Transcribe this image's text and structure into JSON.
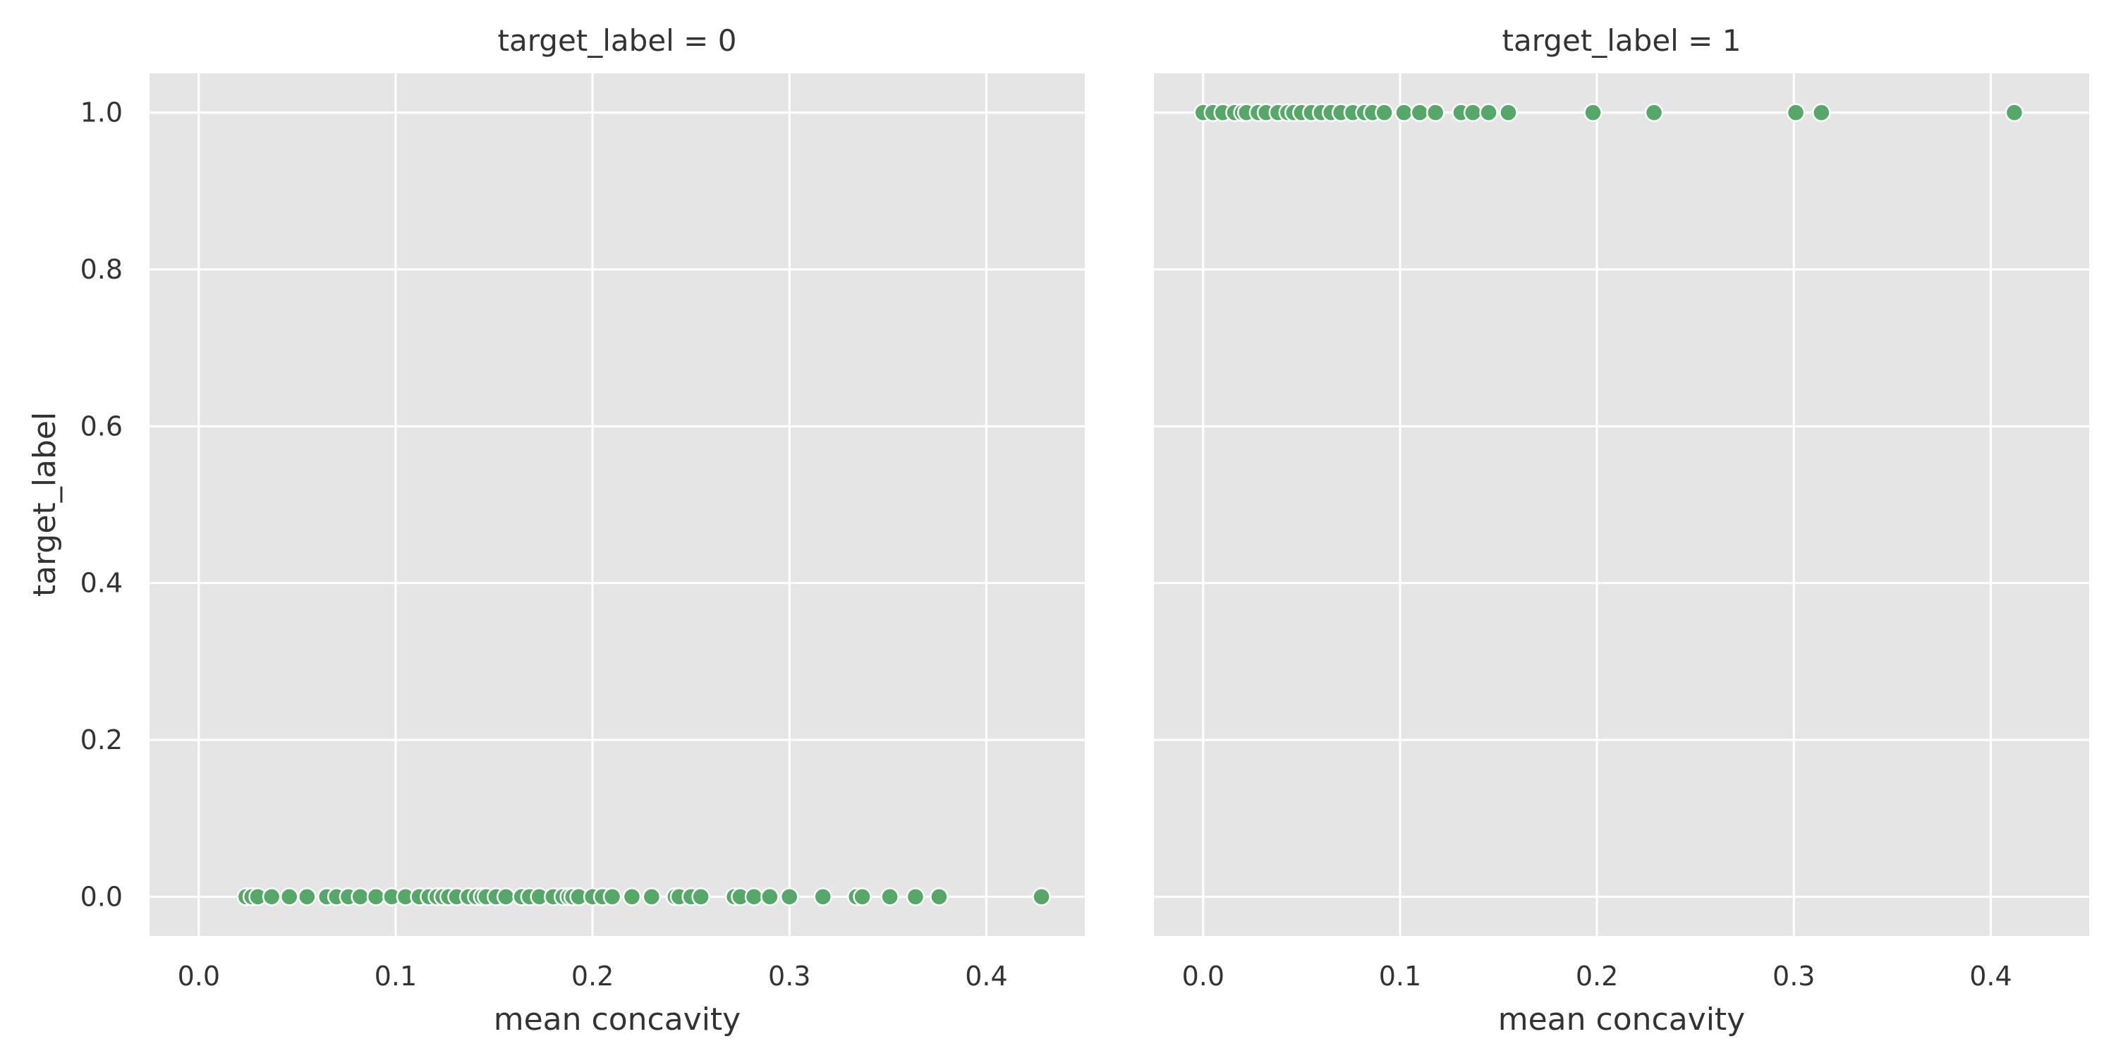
{
  "chart_data": [
    {
      "type": "scatter",
      "title": "target_label = 0",
      "xlabel": "mean concavity",
      "ylabel": "target_label",
      "xlim": [
        -0.025,
        0.45
      ],
      "ylim": [
        -0.05,
        1.05
      ],
      "xticks": [
        0.0,
        0.1,
        0.2,
        0.3,
        0.4
      ],
      "xtick_labels": [
        "0.0",
        "0.1",
        "0.2",
        "0.3",
        "0.4"
      ],
      "yticks": [
        0.0,
        0.2,
        0.4,
        0.6,
        0.8,
        1.0
      ],
      "ytick_labels": [
        "0.0",
        "0.2",
        "0.4",
        "0.6",
        "0.8",
        "1.0"
      ],
      "grid": true,
      "series": [
        {
          "color": "#55a868",
          "x": [
            0.024,
            0.027,
            0.03,
            0.037,
            0.046,
            0.055,
            0.065,
            0.07,
            0.076,
            0.082,
            0.09,
            0.098,
            0.105,
            0.112,
            0.117,
            0.121,
            0.124,
            0.127,
            0.131,
            0.137,
            0.141,
            0.144,
            0.146,
            0.151,
            0.156,
            0.164,
            0.168,
            0.173,
            0.18,
            0.185,
            0.188,
            0.19,
            0.193,
            0.2,
            0.205,
            0.21,
            0.22,
            0.23,
            0.242,
            0.244,
            0.25,
            0.255,
            0.272,
            0.275,
            0.282,
            0.29,
            0.3,
            0.317,
            0.334,
            0.337,
            0.351,
            0.364,
            0.376,
            0.428
          ],
          "y": [
            0,
            0,
            0,
            0,
            0,
            0,
            0,
            0,
            0,
            0,
            0,
            0,
            0,
            0,
            0,
            0,
            0,
            0,
            0,
            0,
            0,
            0,
            0,
            0,
            0,
            0,
            0,
            0,
            0,
            0,
            0,
            0,
            0,
            0,
            0,
            0,
            0,
            0,
            0,
            0,
            0,
            0,
            0,
            0,
            0,
            0,
            0,
            0,
            0,
            0,
            0,
            0,
            0,
            0
          ]
        }
      ]
    },
    {
      "type": "scatter",
      "title": "target_label = 1",
      "xlabel": "mean concavity",
      "ylabel": "",
      "xlim": [
        -0.025,
        0.45
      ],
      "ylim": [
        -0.05,
        1.05
      ],
      "xticks": [
        0.0,
        0.1,
        0.2,
        0.3,
        0.4
      ],
      "xtick_labels": [
        "0.0",
        "0.1",
        "0.2",
        "0.3",
        "0.4"
      ],
      "yticks": [
        0.0,
        0.2,
        0.4,
        0.6,
        0.8,
        1.0
      ],
      "ytick_labels": [],
      "grid": true,
      "series": [
        {
          "color": "#55a868",
          "x": [
            0.0,
            0.005,
            0.01,
            0.016,
            0.02,
            0.022,
            0.028,
            0.032,
            0.038,
            0.043,
            0.046,
            0.05,
            0.055,
            0.06,
            0.065,
            0.07,
            0.076,
            0.082,
            0.086,
            0.092,
            0.102,
            0.11,
            0.118,
            0.131,
            0.137,
            0.145,
            0.155,
            0.198,
            0.229,
            0.301,
            0.314,
            0.412
          ],
          "y": [
            1,
            1,
            1,
            1,
            1,
            1,
            1,
            1,
            1,
            1,
            1,
            1,
            1,
            1,
            1,
            1,
            1,
            1,
            1,
            1,
            1,
            1,
            1,
            1,
            1,
            1,
            1,
            1,
            1,
            1,
            1,
            1
          ]
        }
      ]
    }
  ]
}
